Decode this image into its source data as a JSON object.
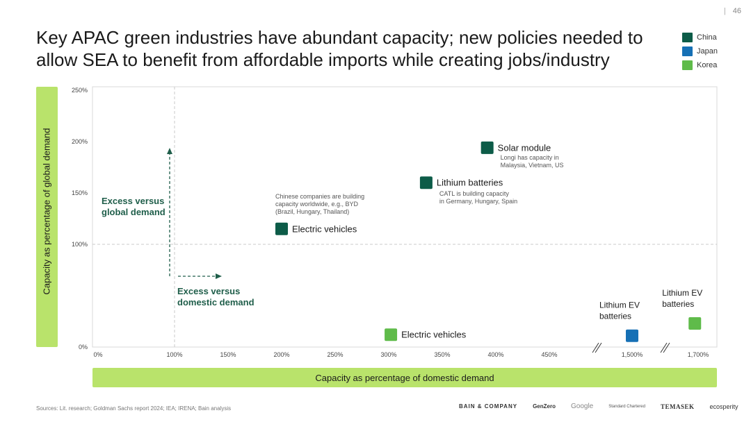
{
  "page_number": "46",
  "title": "Key APAC green industries have abundant capacity; new policies needed to allow SEA to benefit from affordable imports while creating jobs/industry",
  "colors": {
    "china": "#0d5c48",
    "japan": "#1670b5",
    "korea": "#5fbb4a",
    "axis_band": "#b9e36b",
    "annotation": "#1f5e4a"
  },
  "legend": [
    {
      "label": "China",
      "color": "#0d5c48"
    },
    {
      "label": "Japan",
      "color": "#1670b5"
    },
    {
      "label": "Korea",
      "color": "#5fbb4a"
    }
  ],
  "chart_data": {
    "type": "scatter",
    "title": "",
    "xlabel": "Capacity as percentage of domestic demand",
    "ylabel": "Capacity as percentage of global demand",
    "x_ticks": [
      "0%",
      "100%",
      "150%",
      "200%",
      "250%",
      "300%",
      "350%",
      "400%",
      "450%",
      "1,500%",
      "1,700%"
    ],
    "y_ticks": [
      "0%",
      "100%",
      "150%",
      "200%",
      "250%"
    ],
    "ylim": [
      0,
      250
    ],
    "x_axis_break": true,
    "grid": false,
    "legend_position": "top-right",
    "reference_lines": {
      "x": 100,
      "y": 100
    },
    "points": [
      {
        "series": "China",
        "x": 200,
        "y": 115,
        "label": "Electric vehicles",
        "note": "Chinese companies are building capacity worldwide, e.g., BYD (Brazil, Hungary, Thailand)"
      },
      {
        "series": "China",
        "x": 335,
        "y": 160,
        "label": "Lithium batteries",
        "note": "CATL is building capacity in Germany, Hungary, Spain"
      },
      {
        "series": "China",
        "x": 392,
        "y": 194,
        "label": "Solar module",
        "note": "Longi has capacity in Malaysia, Vietnam, US"
      },
      {
        "series": "Korea",
        "x": 302,
        "y": 12,
        "label": "Electric vehicles",
        "note": ""
      },
      {
        "series": "Japan",
        "x": 1500,
        "y": 11,
        "label": "Lithium EV batteries",
        "note": ""
      },
      {
        "series": "Korea",
        "x": 1690,
        "y": 23,
        "label": "Lithium EV batteries",
        "note": ""
      }
    ],
    "annotations": {
      "global": "Excess versus global demand",
      "domestic": "Excess versus domestic demand"
    }
  },
  "footer": {
    "sources": "Sources: Lit. research; Goldman Sachs report 2024; IEA; IRENA; Bain analysis",
    "logos": [
      "BAIN & COMPANY",
      "GenZero",
      "Google",
      "Standard Chartered",
      "TEMASEK",
      "ecosperity"
    ]
  }
}
